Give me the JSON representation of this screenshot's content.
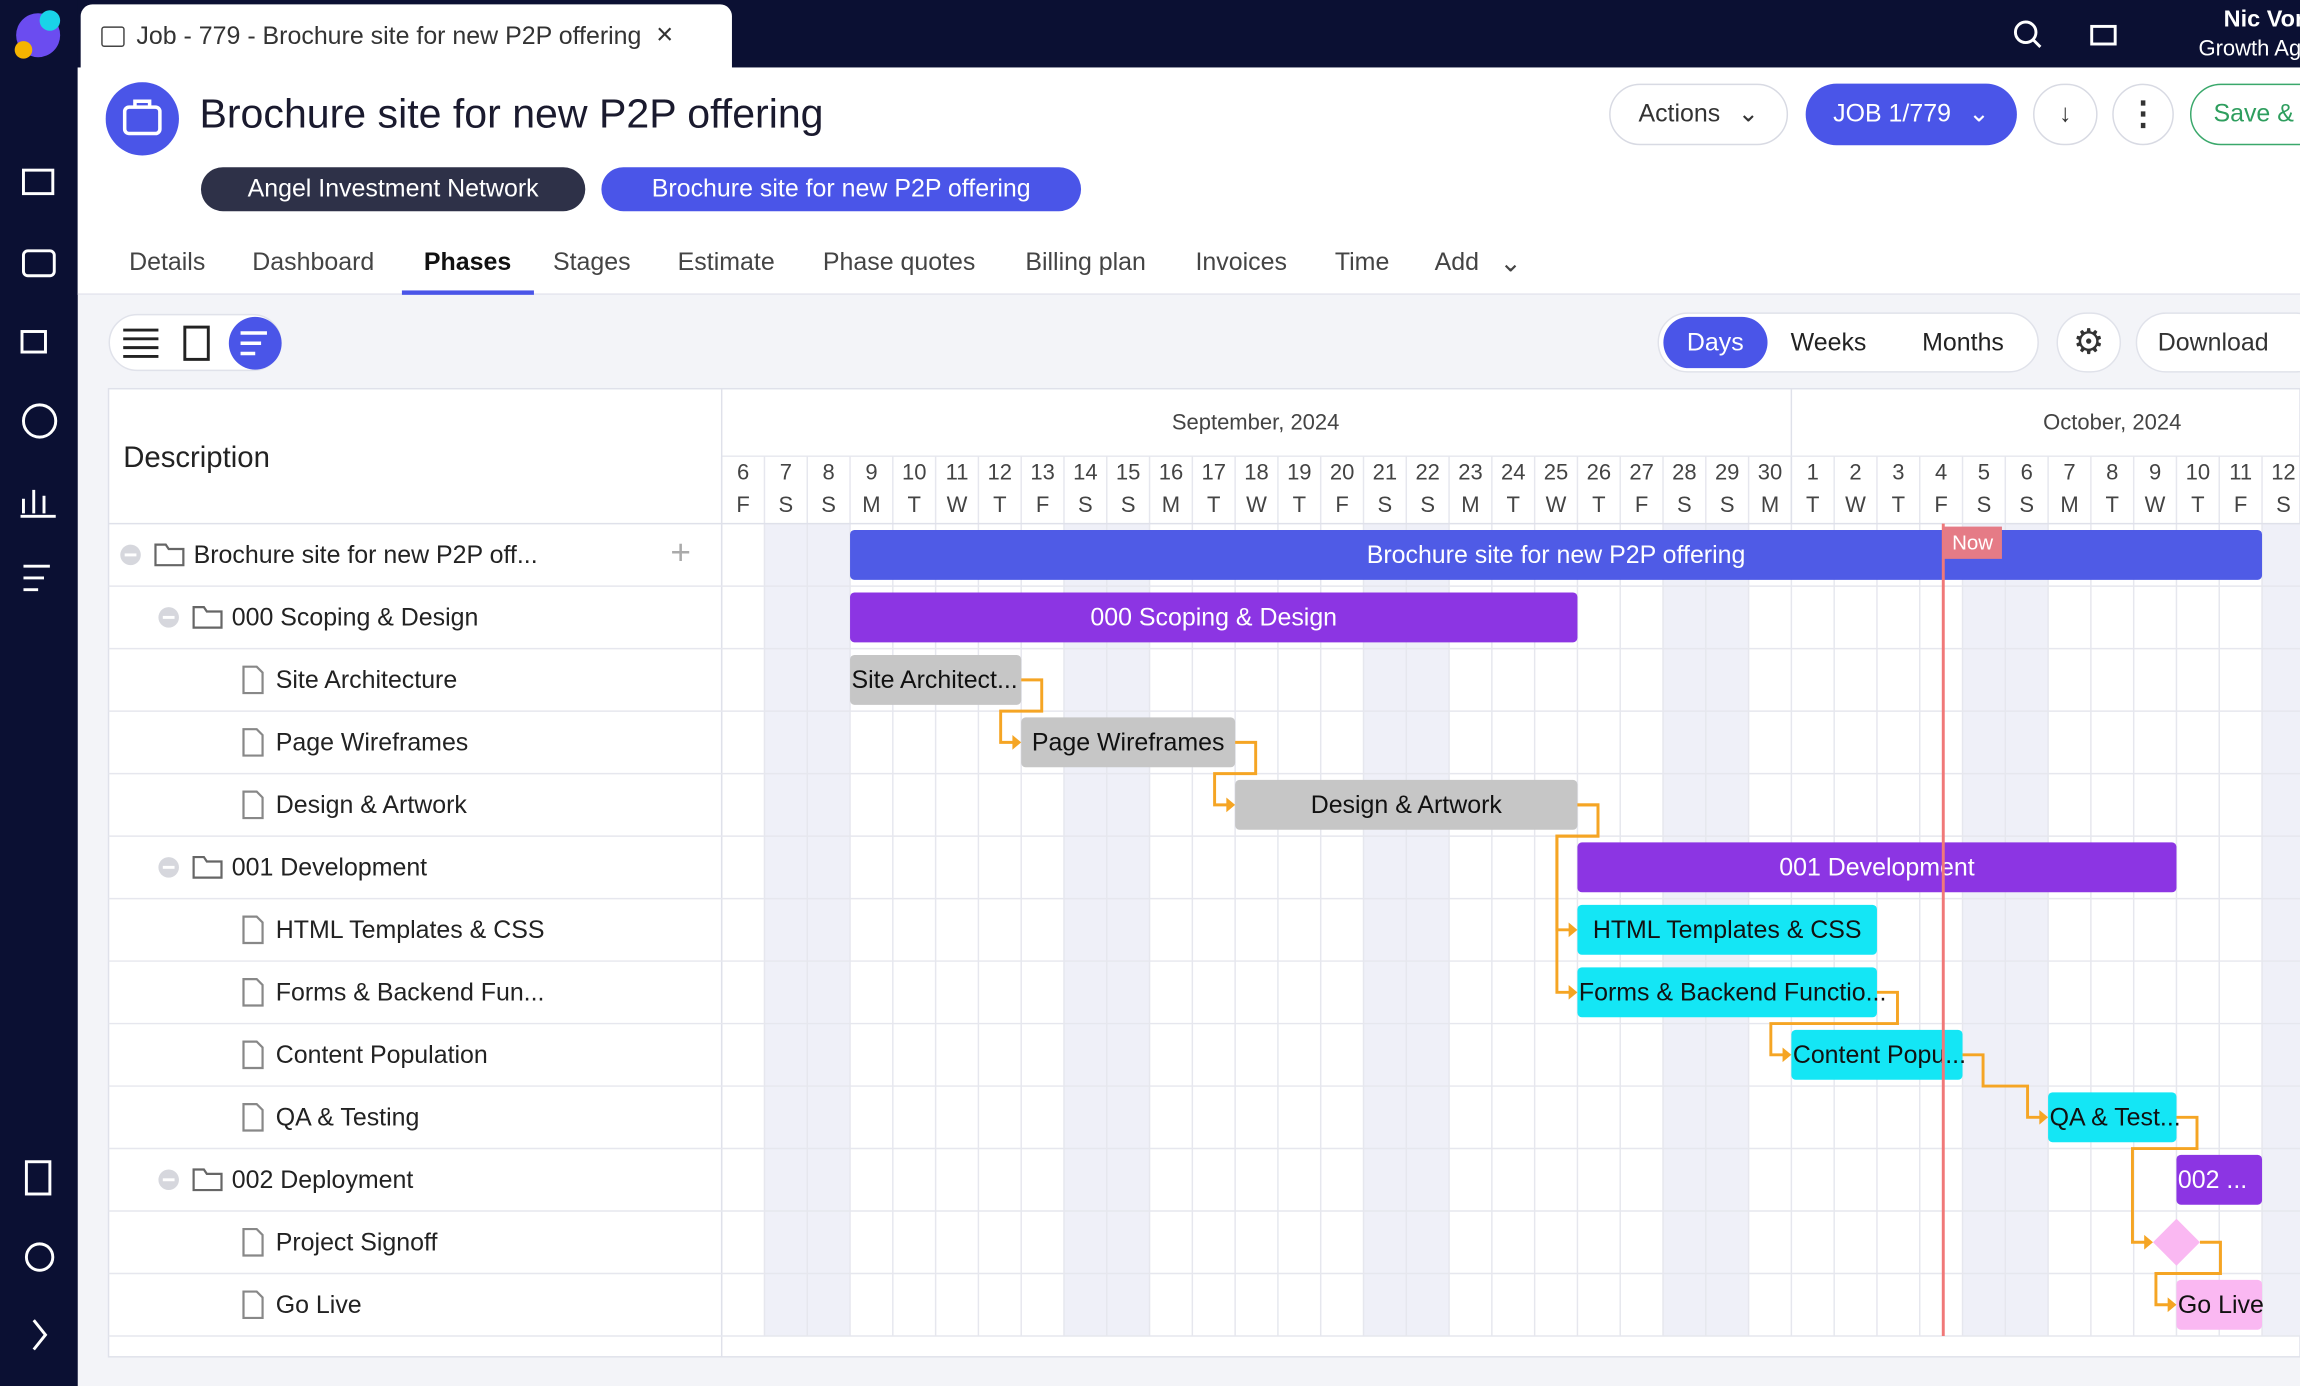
{
  "browser_tab": {
    "title": "Job - 779 - Brochure site for new P2P offering"
  },
  "user": {
    "name": "Nic Vonag",
    "organization": "Growth Agenc"
  },
  "header": {
    "title": "Brochure site for new P2P offering",
    "chips": [
      "Angel Investment Network",
      "Brochure site for new P2P offering"
    ],
    "actions": "Actions",
    "job": "JOB 1/779",
    "save": "Save &"
  },
  "nav": {
    "tabs": [
      "Details",
      "Dashboard",
      "Phases",
      "Stages",
      "Estimate",
      "Phase quotes",
      "Billing plan",
      "Invoices",
      "Time",
      "Add"
    ],
    "active_index": 2
  },
  "toolbar": {
    "views": [
      "Days",
      "Weeks",
      "Months"
    ],
    "active_view": 0,
    "download": "Download"
  },
  "gantt": {
    "description_header": "Description",
    "months": [
      "September, 2024",
      "October, 2024"
    ],
    "days": [
      6,
      7,
      8,
      9,
      10,
      11,
      12,
      13,
      14,
      15,
      16,
      17,
      18,
      19,
      20,
      21,
      22,
      23,
      24,
      25,
      26,
      27,
      28,
      29,
      30,
      1,
      2,
      3,
      4,
      5,
      6,
      7,
      8,
      9,
      10,
      11,
      12
    ],
    "weekdays": [
      "F",
      "S",
      "S",
      "M",
      "T",
      "W",
      "T",
      "F",
      "S",
      "S",
      "M",
      "T",
      "W",
      "T",
      "F",
      "S",
      "S",
      "M",
      "T",
      "W",
      "T",
      "F",
      "S",
      "S",
      "M",
      "T",
      "W",
      "T",
      "F",
      "S",
      "S",
      "M",
      "T",
      "W",
      "T",
      "F",
      "S"
    ],
    "now_label": "Now",
    "rows": [
      {
        "label": "Brochure site for new P2P off...",
        "bar": "Brochure site for new P2P offering",
        "color": "#4f5be6"
      },
      {
        "label": "000 Scoping & Design",
        "bar": "000 Scoping & Design",
        "color": "#8c35e3"
      },
      {
        "label": "Site Architecture",
        "bar": "Site Architect...",
        "color": "#c6c6c6"
      },
      {
        "label": "Page Wireframes",
        "bar": "Page Wireframes",
        "color": "#c6c6c6"
      },
      {
        "label": "Design & Artwork",
        "bar": "Design & Artwork",
        "color": "#c6c6c6"
      },
      {
        "label": "001 Development",
        "bar": "001 Development",
        "color": "#8c35e3"
      },
      {
        "label": "HTML Templates & CSS",
        "bar": "HTML Templates & CSS",
        "color": "#14e6f5"
      },
      {
        "label": "Forms & Backend Fun...",
        "bar": "Forms & Backend Functio...",
        "color": "#14e6f5"
      },
      {
        "label": "Content Population",
        "bar": "Content Popu...",
        "color": "#14e6f5"
      },
      {
        "label": "QA & Testing",
        "bar": "QA & Test...",
        "color": "#14e6f5"
      },
      {
        "label": "002 Deployment",
        "bar": "002 ...",
        "color": "#8c35e3"
      },
      {
        "label": "Project Signoff",
        "color": "#fab8f2"
      },
      {
        "label": "Go Live",
        "bar": "Go Live",
        "color": "#fab8f2"
      }
    ]
  }
}
